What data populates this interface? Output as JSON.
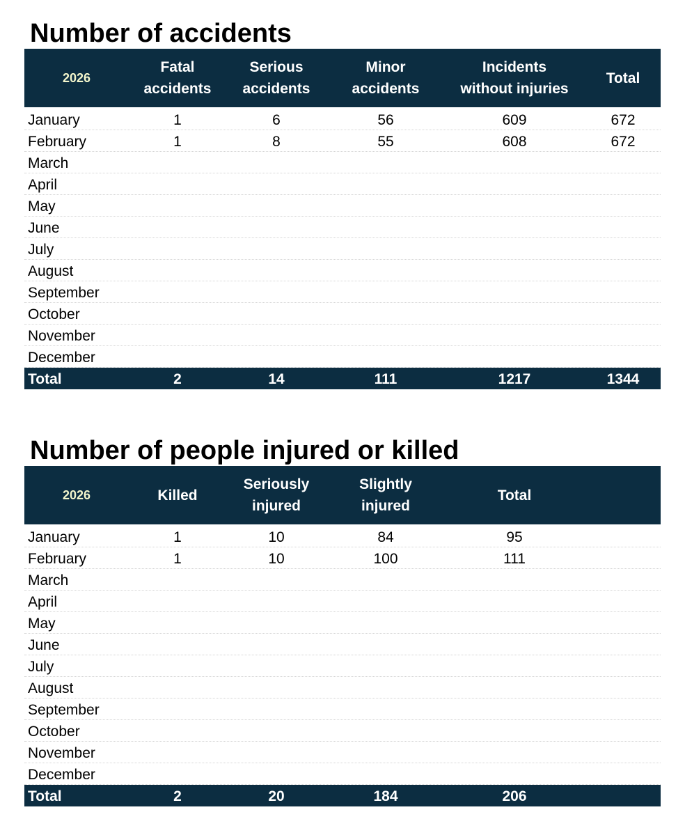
{
  "accidents": {
    "title": "Number of accidents",
    "year": "2026",
    "headers": [
      "Fatal\naccidents",
      "Serious\naccidents",
      "Minor\naccidents",
      "Incidents\nwithout injuries",
      "Total"
    ],
    "rows": [
      {
        "month": "January",
        "values": [
          "1",
          "6",
          "56",
          "609",
          "672"
        ]
      },
      {
        "month": "February",
        "values": [
          "1",
          "8",
          "55",
          "608",
          "672"
        ]
      },
      {
        "month": "March",
        "values": [
          "",
          "",
          "",
          "",
          ""
        ]
      },
      {
        "month": "April",
        "values": [
          "",
          "",
          "",
          "",
          ""
        ]
      },
      {
        "month": "May",
        "values": [
          "",
          "",
          "",
          "",
          ""
        ]
      },
      {
        "month": "June",
        "values": [
          "",
          "",
          "",
          "",
          ""
        ]
      },
      {
        "month": "July",
        "values": [
          "",
          "",
          "",
          "",
          ""
        ]
      },
      {
        "month": "August",
        "values": [
          "",
          "",
          "",
          "",
          ""
        ]
      },
      {
        "month": "September",
        "values": [
          "",
          "",
          "",
          "",
          ""
        ]
      },
      {
        "month": "October",
        "values": [
          "",
          "",
          "",
          "",
          ""
        ]
      },
      {
        "month": "November",
        "values": [
          "",
          "",
          "",
          "",
          ""
        ]
      },
      {
        "month": "December",
        "values": [
          "",
          "",
          "",
          "",
          ""
        ]
      }
    ],
    "total": {
      "label": "Total",
      "values": [
        "2",
        "14",
        "111",
        "1217",
        "1344"
      ]
    }
  },
  "people": {
    "title": "Number of people injured or killed",
    "year": "2026",
    "headers": [
      "Killed",
      "Seriously\ninjured",
      "Slightly\ninjured",
      "Total"
    ],
    "rows": [
      {
        "month": "January",
        "values": [
          "1",
          "10",
          "84",
          "95"
        ]
      },
      {
        "month": "February",
        "values": [
          "1",
          "10",
          "100",
          "111"
        ]
      },
      {
        "month": "March",
        "values": [
          "",
          "",
          "",
          ""
        ]
      },
      {
        "month": "April",
        "values": [
          "",
          "",
          "",
          ""
        ]
      },
      {
        "month": "May",
        "values": [
          "",
          "",
          "",
          ""
        ]
      },
      {
        "month": "June",
        "values": [
          "",
          "",
          "",
          ""
        ]
      },
      {
        "month": "July",
        "values": [
          "",
          "",
          "",
          ""
        ]
      },
      {
        "month": "August",
        "values": [
          "",
          "",
          "",
          ""
        ]
      },
      {
        "month": "September",
        "values": [
          "",
          "",
          "",
          ""
        ]
      },
      {
        "month": "October",
        "values": [
          "",
          "",
          "",
          ""
        ]
      },
      {
        "month": "November",
        "values": [
          "",
          "",
          "",
          ""
        ]
      },
      {
        "month": "December",
        "values": [
          "",
          "",
          "",
          ""
        ]
      }
    ],
    "total": {
      "label": "Total",
      "values": [
        "2",
        "20",
        "184",
        "206"
      ]
    }
  },
  "colors": {
    "header_bg": "#0c2d41",
    "year_text": "#f3f6cc"
  }
}
